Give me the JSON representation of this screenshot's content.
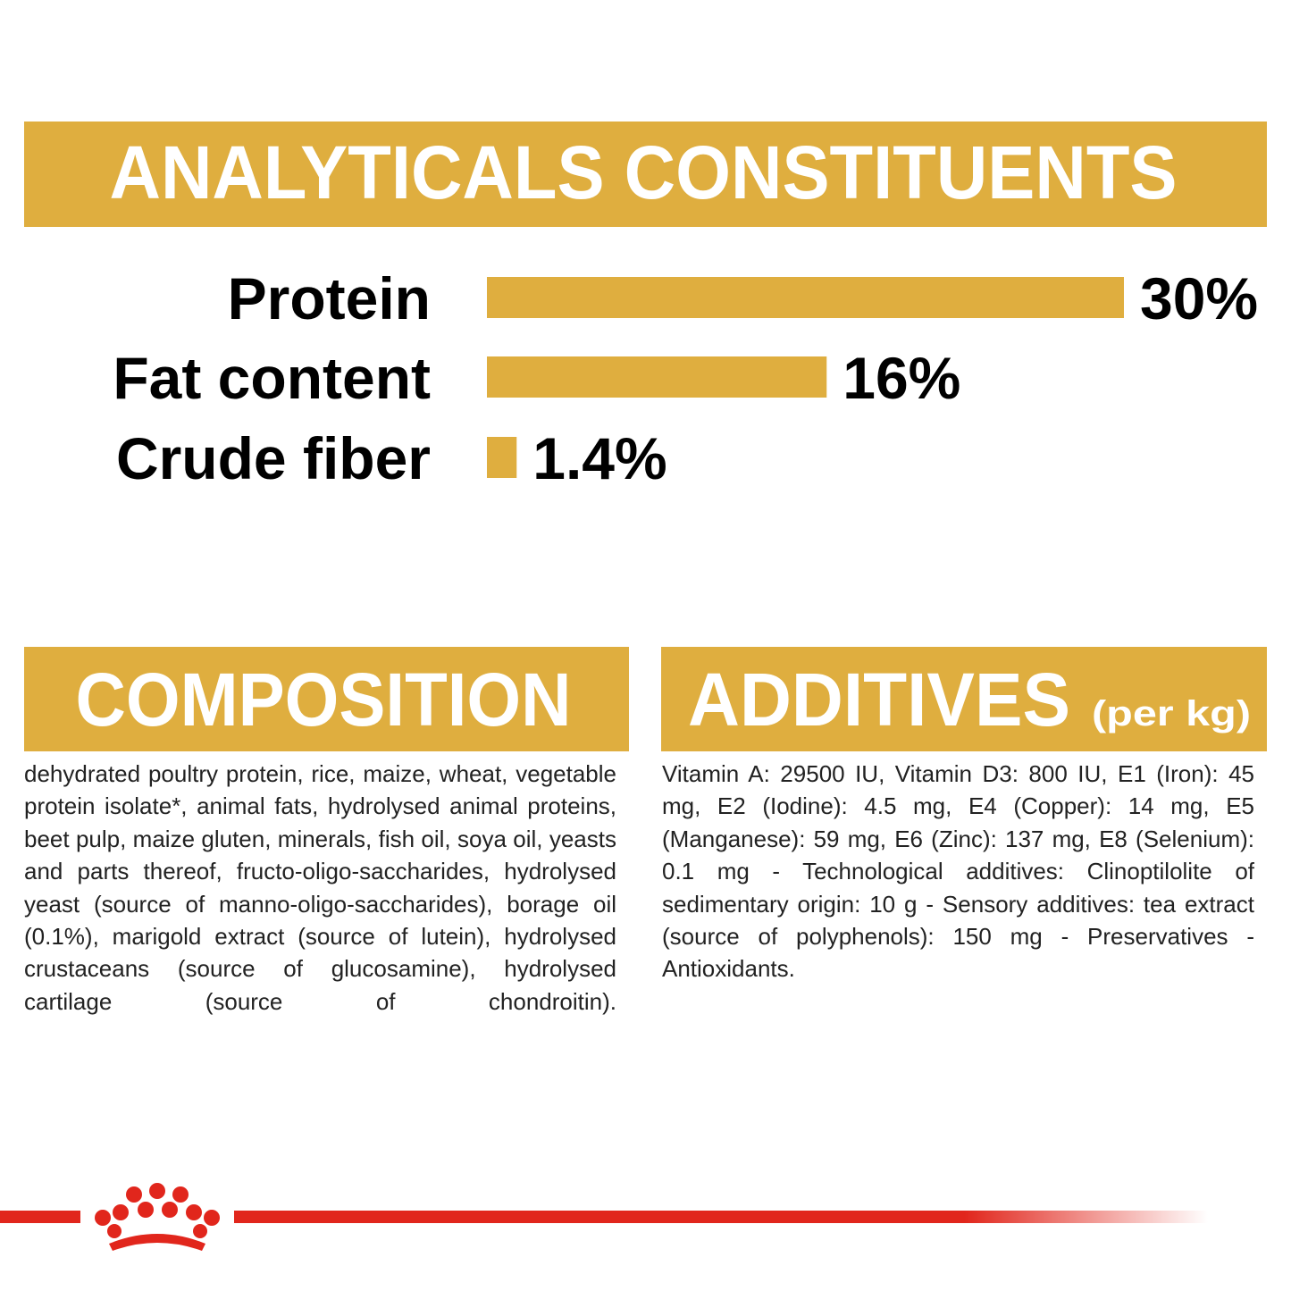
{
  "chart_data": {
    "type": "bar",
    "orientation": "horizontal",
    "title": "ANALYTICALS CONSTITUENTS",
    "categories": [
      "Protein",
      "Fat content",
      "Crude fiber"
    ],
    "values": [
      30,
      16,
      1.4
    ],
    "value_labels": [
      "30%",
      "16%",
      "1.4%"
    ],
    "color": "#dfae3f"
  },
  "composition": {
    "title": "COMPOSITION",
    "text": "dehydrated poultry protein, rice, maize, wheat, vegetable protein isolate*, animal fats, hydrolysed animal proteins, beet pulp, maize gluten, minerals, fish oil, soya oil, yeasts and parts thereof, fructo-oligo-saccharides, hydrolysed yeast (source of manno-oligo-saccharides), borage oil (0.1%), marigold extract (source of lutein), hydrolysed crustaceans (source of glucosamine), hydrolysed cartilage (source of chondroitin)."
  },
  "additives": {
    "title": "ADDITIVES",
    "subtitle": "(per kg)",
    "text": "Vitamin A: 29500 IU, Vitamin D3: 800 IU, E1 (Iron): 45 mg, E2 (Iodine): 4.5 mg, E4 (Copper): 14 mg, E5 (Manganese): 59 mg, E6 (Zinc): 137 mg, E8 (Selenium): 0.1 mg - Technological additives: Clinoptilolite of sedimentary origin: 10 g - Sensory additives: tea extract (source of polyphenols): 150 mg - Preservatives - Antioxidants."
  }
}
